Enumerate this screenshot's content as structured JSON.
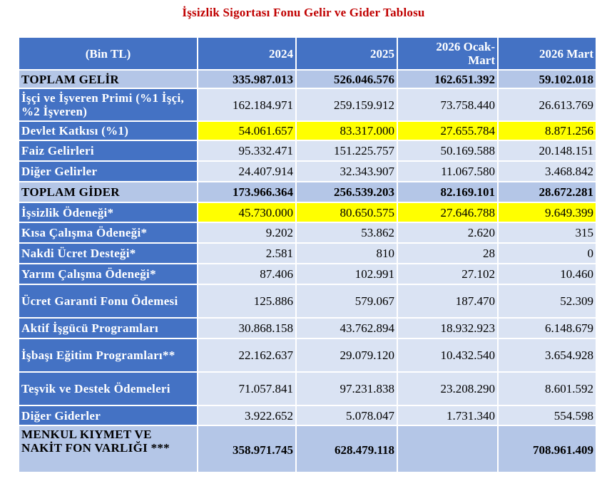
{
  "title": "İşsizlik Sigortası Fonu Gelir ve Gider Tablosu",
  "headers": [
    "(Bin TL)",
    "2024",
    "2025",
    "2026 Ocak-\nMart",
    "2026 Mart"
  ],
  "rows": [
    {
      "label": "TOPLAM GELİR",
      "values": [
        "335.987.013",
        "526.046.576",
        "162.651.392",
        "59.102.018"
      ]
    },
    {
      "label": "İşçi ve İşveren Primi (%1 İşçi, %2 İşveren)",
      "values": [
        "162.184.971",
        "259.159.912",
        "73.758.440",
        "26.613.769"
      ]
    },
    {
      "label": "Devlet Katkısı (%1)",
      "values": [
        "54.061.657",
        "83.317.000",
        "27.655.784",
        "8.871.256"
      ]
    },
    {
      "label": "Faiz Gelirleri",
      "values": [
        "95.332.471",
        "151.225.757",
        "50.169.588",
        "20.148.151"
      ]
    },
    {
      "label": "Diğer Gelirler",
      "values": [
        "24.407.914",
        "32.343.907",
        "11.067.580",
        "3.468.842"
      ]
    },
    {
      "label": "TOPLAM GİDER",
      "values": [
        "173.966.364",
        "256.539.203",
        "82.169.101",
        "28.672.281"
      ]
    },
    {
      "label": "İşsizlik Ödeneği*",
      "values": [
        "45.730.000",
        "80.650.575",
        "27.646.788",
        "9.649.399"
      ]
    },
    {
      "label": "Kısa Çalışma Ödeneği*",
      "values": [
        "9.202",
        "53.862",
        "2.620",
        "315"
      ]
    },
    {
      "label": "Nakdi Ücret Desteği*",
      "values": [
        "2.581",
        "810",
        "28",
        "0"
      ]
    },
    {
      "label": "Yarım Çalışma Ödeneği*",
      "values": [
        "87.406",
        "102.991",
        "27.102",
        "10.460"
      ]
    },
    {
      "label": "Ücret Garanti Fonu Ödemesi",
      "values": [
        "125.886",
        "579.067",
        "187.470",
        "52.309"
      ]
    },
    {
      "label": "Aktif İşgücü Programları",
      "values": [
        "30.868.158",
        "43.762.894",
        "18.932.923",
        "6.148.679"
      ]
    },
    {
      "label": "İşbaşı Eğitim Programları**",
      "values": [
        "22.162.637",
        "29.079.120",
        "10.432.540",
        "3.654.928"
      ]
    },
    {
      "label": "Teşvik ve Destek Ödemeleri",
      "values": [
        "71.057.841",
        "97.231.838",
        "23.208.290",
        "8.601.592"
      ]
    },
    {
      "label": "Diğer Giderler",
      "values": [
        "3.922.652",
        "5.078.047",
        "1.731.340",
        "554.598"
      ]
    },
    {
      "label": "MENKUL KIYMET VE NAKİT FON VARLIĞI ***",
      "values": [
        "358.971.745",
        "628.479.118",
        "",
        "708.961.409"
      ]
    }
  ]
}
